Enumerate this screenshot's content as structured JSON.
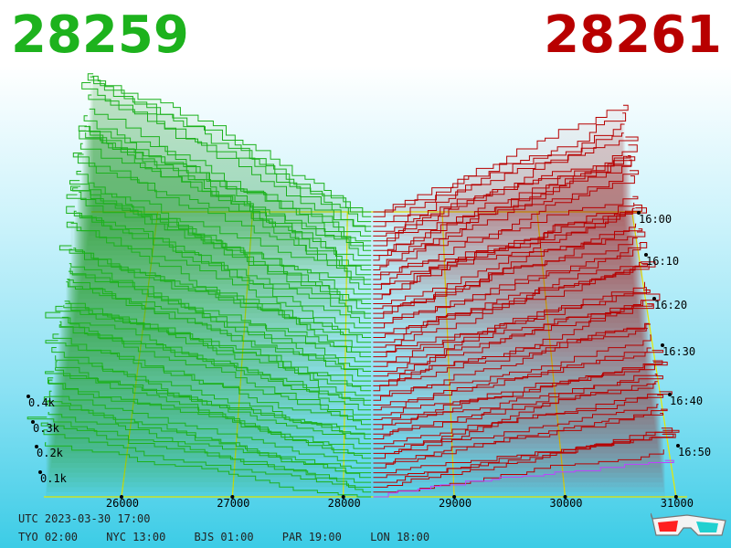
{
  "prices": {
    "bid": "28259",
    "ask": "28261"
  },
  "footer": {
    "utc_label": "UTC 2023-03-30 17:00",
    "zones": [
      "TYO 02:00",
      "NYC 13:00",
      "BJS 01:00",
      "PAR 19:00",
      "LON 18:00"
    ]
  },
  "icons": {
    "glasses": "3d-glasses-icon"
  },
  "colors": {
    "bid": "#1db21d",
    "ask": "#b80000",
    "grid": "#e8e800",
    "latest": "#c040ff"
  },
  "chart_data": {
    "type": "area",
    "x_ticks": [
      "26000",
      "27000",
      "28000",
      "29000",
      "30000",
      "31000"
    ],
    "x_range": [
      25300,
      31100
    ],
    "volume_ticks": [
      "0.1k",
      "0.2k",
      "0.3k",
      "0.4k"
    ],
    "time_ticks": [
      "16:00",
      "16:10",
      "16:20",
      "16:30",
      "16:40",
      "16:50"
    ],
    "mid_price": 28260,
    "snapshots": 60
  }
}
